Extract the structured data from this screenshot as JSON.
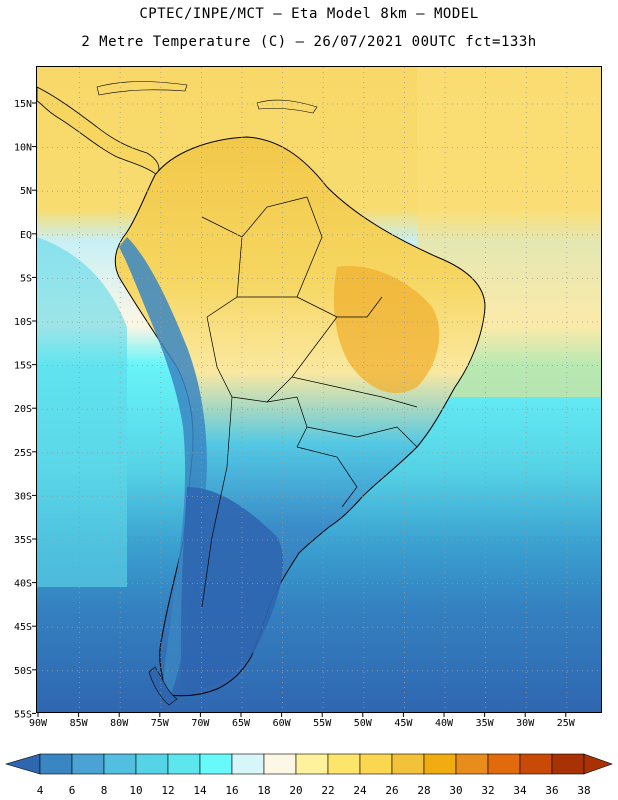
{
  "title": {
    "line1": "CPTEC/INPE/MCT –  Eta Model 8km – MODEL",
    "line2": "2 Metre Temperature (C) – 26/07/2021 00UTC fct=133h"
  },
  "lat_labels": [
    "15N",
    "10N",
    "5N",
    "EQ",
    "5S",
    "10S",
    "15S",
    "20S",
    "25S",
    "30S",
    "35S",
    "40S",
    "45S",
    "50S",
    "55S"
  ],
  "lon_labels": [
    "90W",
    "85W",
    "80W",
    "75W",
    "70W",
    "65W",
    "60W",
    "55W",
    "50W",
    "45W",
    "40W",
    "35W",
    "30W",
    "25W"
  ],
  "colorbar": {
    "labels": [
      "4",
      "6",
      "8",
      "10",
      "12",
      "14",
      "16",
      "18",
      "20",
      "22",
      "24",
      "26",
      "28",
      "30",
      "32",
      "34",
      "36",
      "38"
    ],
    "colors": [
      "#2f66b0",
      "#3a86c2",
      "#4aa3d4",
      "#52bfe0",
      "#56d3e6",
      "#5ee6ee",
      "#68fafa",
      "#d6f6fa",
      "#fdf8e6",
      "#fef29c",
      "#fde46a",
      "#fad651",
      "#f2c23a",
      "#f0ac10",
      "#e88c1c",
      "#e06a0c",
      "#c84a06",
      "#a83204"
    ],
    "low_color": "#2f66b0",
    "high_color": "#a83204"
  },
  "colors": {
    "ocean_north": "#f8d868",
    "ocean_south": "#2f66b0",
    "land_outline": "#000000",
    "grid": "#9a9a9a"
  }
}
